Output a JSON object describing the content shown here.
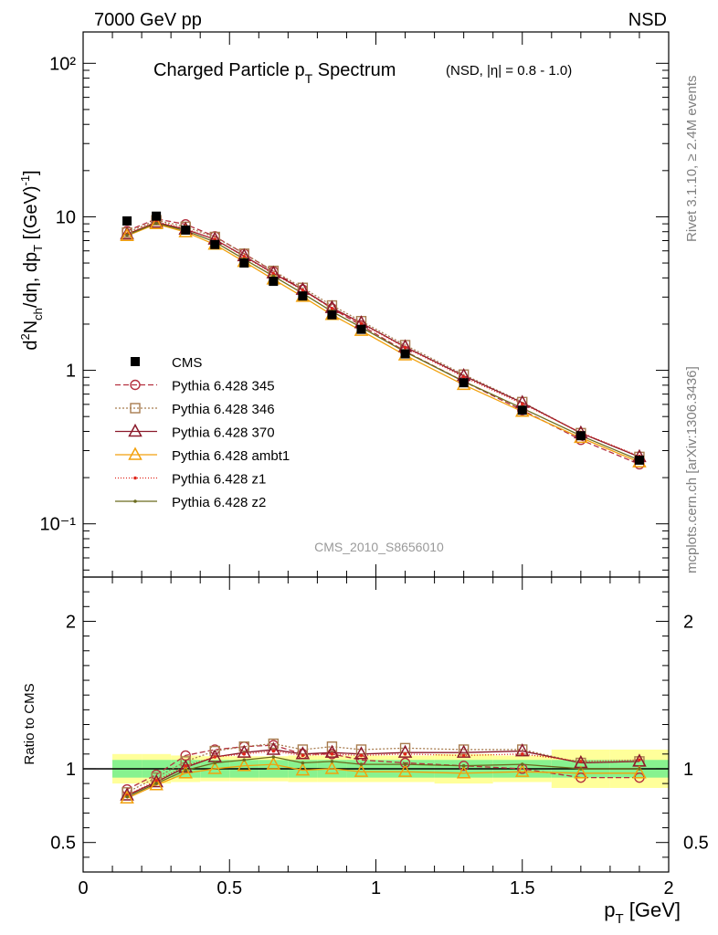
{
  "header": {
    "left": "7000 GeV pp",
    "right": "NSD"
  },
  "side_labels": {
    "rivet": "Rivet 3.1.10, ≥ 2.4M events",
    "mcplots": "mcplots.cern.ch [arXiv:1306.3436]"
  },
  "chart_data": {
    "type": "line",
    "title": "Charged Particle p_T Spectrum",
    "title_main": "Charged Particle p",
    "title_sub": "T",
    "title_tail": " Spectrum",
    "subtitle": "(NSD, |η| = 0.8 - 1.0)",
    "watermark": "CMS_2010_S8656010",
    "xlabel": "p_T [GeV]",
    "xlabel_main": "p",
    "xlabel_sub": "T",
    "xlabel_unit": " [GeV]",
    "ylabel": "d²N_ch/dη, dp_T [(GeV)⁻¹]",
    "ratio_ylabel": "Ratio to CMS",
    "xlim": [
      0,
      2.0
    ],
    "ylim": [
      0.045,
      160
    ],
    "log_y": true,
    "ratio_ylim": [
      0.3,
      2.3
    ],
    "x_ticks": [
      0,
      0.5,
      1,
      1.5,
      2
    ],
    "x_tick_labels": [
      "0",
      "0.5",
      "1",
      "1.5",
      "2"
    ],
    "y_ticks": [
      0.1,
      1,
      10,
      100
    ],
    "y_tick_labels": [
      "10⁻¹",
      "1",
      "10",
      "10²"
    ],
    "ratio_ticks": [
      0.5,
      1,
      2
    ],
    "ratio_tick_labels": [
      "0.5",
      "1",
      "2"
    ],
    "x": [
      0.15,
      0.25,
      0.35,
      0.45,
      0.55,
      0.65,
      0.75,
      0.85,
      0.95,
      1.1,
      1.3,
      1.5,
      1.7,
      1.9
    ],
    "data": {
      "name": "CMS",
      "values": [
        9.4,
        10.1,
        8.2,
        6.6,
        5.0,
        3.8,
        3.05,
        2.3,
        1.85,
        1.28,
        0.83,
        0.55,
        0.375,
        0.26
      ],
      "band_edges": [
        0.1,
        0.2,
        0.3,
        0.4,
        0.5,
        0.6,
        0.7,
        0.8,
        0.9,
        1.0,
        1.2,
        1.4,
        1.6,
        1.8,
        2.0
      ],
      "stat_err": [
        0.06,
        0.06,
        0.06,
        0.06,
        0.06,
        0.06,
        0.06,
        0.06,
        0.06,
        0.06,
        0.06,
        0.06,
        0.06,
        0.06
      ],
      "tot_err": [
        0.1,
        0.1,
        0.09,
        0.085,
        0.085,
        0.085,
        0.09,
        0.09,
        0.09,
        0.09,
        0.1,
        0.09,
        0.13,
        0.13
      ]
    },
    "series": [
      {
        "name": "Pythia 6.428 345",
        "color": "#b4303f",
        "dash": "6,3",
        "marker": "circle",
        "ratio": [
          0.86,
          0.96,
          1.09,
          1.13,
          1.15,
          1.16,
          1.1,
          1.1,
          1.06,
          1.04,
          1.02,
          1.0,
          0.94,
          0.94
        ]
      },
      {
        "name": "Pythia 6.428 346",
        "color": "#a87c4f",
        "dash": "2,2",
        "marker": "square",
        "ratio": [
          0.84,
          0.94,
          1.05,
          1.12,
          1.15,
          1.17,
          1.13,
          1.15,
          1.13,
          1.14,
          1.13,
          1.13,
          1.04,
          1.05
        ]
      },
      {
        "name": "Pythia 6.428 370",
        "color": "#8b1a2b",
        "dash": "",
        "marker": "triangle",
        "ratio": [
          0.82,
          0.91,
          1.01,
          1.08,
          1.11,
          1.13,
          1.1,
          1.11,
          1.1,
          1.11,
          1.11,
          1.12,
          1.04,
          1.05
        ]
      },
      {
        "name": "Pythia 6.428 ambt1",
        "color": "#f2a10d",
        "dash": "",
        "marker": "triangle",
        "ratio": [
          0.8,
          0.89,
          0.97,
          1.0,
          1.02,
          1.03,
          0.99,
          1.0,
          0.98,
          0.98,
          0.97,
          0.98,
          0.97,
          0.97
        ]
      },
      {
        "name": "Pythia 6.428 z1",
        "color": "#e0261c",
        "dash": "1,2",
        "marker": "dot",
        "ratio": [
          0.82,
          0.92,
          1.02,
          1.08,
          1.1,
          1.12,
          1.09,
          1.1,
          1.09,
          1.1,
          1.09,
          1.1,
          1.05,
          1.06
        ]
      },
      {
        "name": "Pythia 6.428 z2",
        "color": "#6b6b1e",
        "dash": "",
        "marker": "dot",
        "ratio": [
          0.81,
          0.9,
          0.99,
          1.04,
          1.06,
          1.08,
          1.04,
          1.05,
          1.03,
          1.03,
          1.02,
          1.03,
          1.0,
          1.0
        ]
      }
    ],
    "legend_placement": "center-left",
    "colors": {
      "band_stat": "#88f28f",
      "band_tot": "#ffff9a",
      "data": "#000000"
    }
  }
}
